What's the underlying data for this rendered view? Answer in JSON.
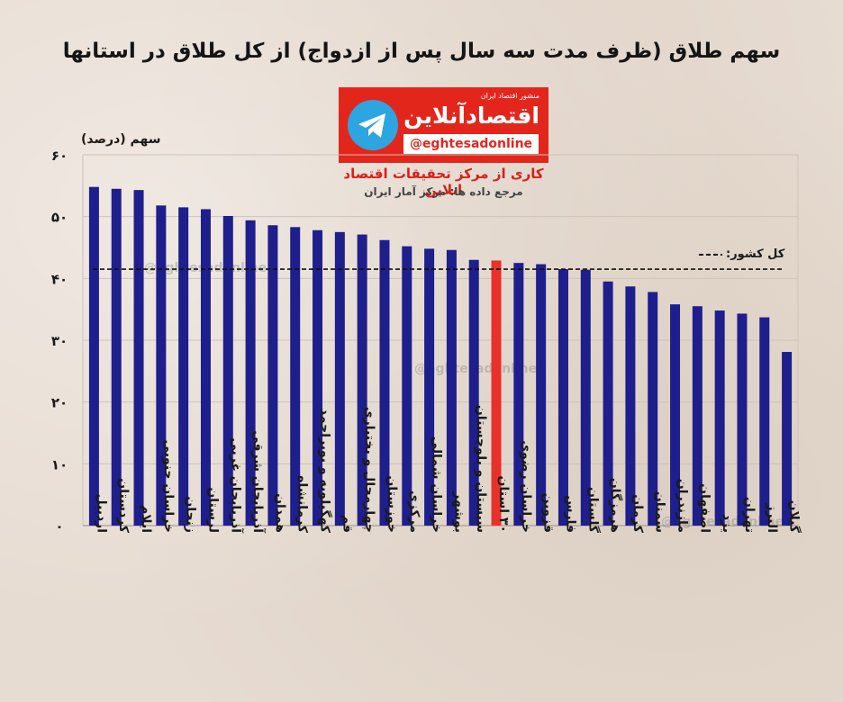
{
  "title": "سهم طلاق (ظرف مدت سه سال پس از ازدواج) از کل طلاق در استانها",
  "logo": {
    "tagline": "منشور اقتصاد ایران",
    "brand": "اقتصادآنلاین",
    "handle": "@eghtesadonline"
  },
  "credit": "کاری از مرکز تحقیقات اقتصاد انلاین",
  "source": "مرجع داده ها: مرکز آمار ایران",
  "watermark": "@eghtesadonline",
  "colors": {
    "bar": "#1e1e8c",
    "highlight": "#e8312a",
    "logo_red": "#e3261c"
  },
  "chart_data": {
    "type": "bar",
    "title": "سهم طلاق (ظرف مدت سه سال پس از ازدواج) از کل طلاق در استانها",
    "ylabel": "سهم (درصد)",
    "ylim": [
      0,
      60
    ],
    "yticks": [
      {
        "value": 0,
        "label": "۰"
      },
      {
        "value": 10,
        "label": "۱۰"
      },
      {
        "value": 20,
        "label": "۲۰"
      },
      {
        "value": 30,
        "label": "۳۰"
      },
      {
        "value": 40,
        "label": "۴۰"
      },
      {
        "value": 50,
        "label": "۵۰"
      },
      {
        "value": 60,
        "label": "۶۰"
      }
    ],
    "grid": true,
    "reference_line": {
      "label": "کل کشور",
      "value": 41.5,
      "style": "dashed"
    },
    "highlight_category": "۳۰ استان",
    "categories": [
      "اردبیل",
      "کردستان",
      "ایلام",
      "خراسان جنوبی",
      "زنجان",
      "لرستان",
      "آذربایجان غربی",
      "آذربایجان شرقی",
      "همدان",
      "کرمانشاه",
      "کهگیلویه و بویراحمد",
      "قم",
      "چهارمحال و بختیاری",
      "خوزستان",
      "مرکزی",
      "خراسان شمالی",
      "بوشهر",
      "سیستان و بلوچستان",
      "۳۰ استان",
      "خراسان رضوی",
      "قزوین",
      "فارس",
      "گلستان",
      "هرمزگان",
      "کرمان",
      "سمنان",
      "مازندران",
      "اصفهان",
      "یزد",
      "تهران",
      "البرز",
      "گیلان"
    ],
    "values": [
      54.8,
      54.5,
      54.3,
      51.8,
      51.5,
      51.2,
      50.1,
      49.4,
      48.6,
      48.3,
      47.8,
      47.5,
      47.1,
      46.2,
      45.2,
      44.8,
      44.6,
      43.0,
      42.9,
      42.5,
      42.3,
      41.5,
      41.4,
      39.5,
      38.7,
      37.8,
      35.8,
      35.5,
      34.8,
      34.3,
      33.7,
      28.1
    ]
  }
}
